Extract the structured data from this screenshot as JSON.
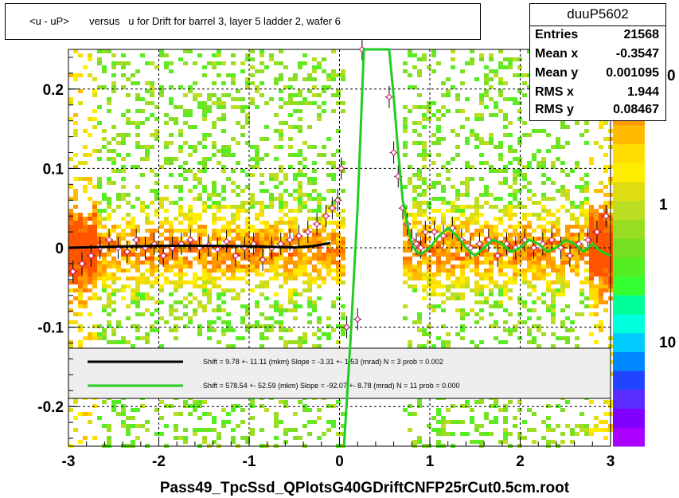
{
  "header": {
    "title": "<u - uP>       versus   u for Drift for barrel 3, layer 5 ladder 2, wafer 6"
  },
  "stats": {
    "name": "duuP5602",
    "rows": [
      {
        "label": "Entries",
        "value": "21568"
      },
      {
        "label": "Mean x",
        "value": "-0.3547"
      },
      {
        "label": "Mean y",
        "value": "0.001095"
      },
      {
        "label": "RMS x",
        "value": "1.944"
      },
      {
        "label": "RMS y",
        "value": "0.08467"
      }
    ]
  },
  "colors": {
    "fit_black": "#000000",
    "fit_green": "#22cc22",
    "marker": "#cc0066",
    "grid": "#000000",
    "legend_bg": "#eeeeee"
  },
  "chart_data": {
    "type": "heatmap",
    "xlabel": "Pass49_TpcSsd_QPlotsG40GDriftCNFP25rCut0.5cm.root",
    "ylabel": "",
    "xlim": [
      -3,
      3
    ],
    "ylim": [
      -0.25,
      0.25
    ],
    "x_ticks": [
      -3,
      -2,
      -1,
      0,
      1,
      2,
      3
    ],
    "y_ticks": [
      -0.2,
      -0.1,
      0,
      0.1,
      0.2
    ],
    "x_tick_labels": [
      "-3",
      "-2",
      "-1",
      "0",
      "1",
      "2",
      "3"
    ],
    "y_tick_labels": [
      "-0.2",
      "-0.1",
      "0",
      "0.1",
      "0.2"
    ],
    "z_ticks": [
      {
        "label": "1",
        "value": 1
      },
      {
        "label": "10",
        "value": 10
      },
      {
        "label": "0",
        "value": 0
      }
    ],
    "z_colors": [
      "#aa00ff",
      "#7f00ff",
      "#5b2cff",
      "#2244ff",
      "#0088ff",
      "#00ccff",
      "#00ffdd",
      "#00ff99",
      "#33ff33",
      "#55ee22",
      "#77e022",
      "#99dd22",
      "#bbdd22",
      "#dddd11",
      "#ffee00",
      "#ffdd00",
      "#ffbb00",
      "#ff9900",
      "#ff7700",
      "#ff5500",
      "#ff3300"
    ],
    "grid": true,
    "legend": {
      "placement": "bottom-center",
      "entries": [
        {
          "color": "#000000",
          "text": "Shift =    9.78 +- 11.11 (mkm) Slope =    -3.31 +- 1.53 (mrad)  N = 3 prob = 0.002"
        },
        {
          "color": "#22cc22",
          "text": "Shift =   578.54 +- 52.59 (mkm) Slope =   -92.07 +- 8.78 (mrad)  N = 11 prob = 0.000"
        }
      ]
    },
    "series": [
      {
        "type": "profile",
        "x": [
          -2.95,
          -2.85,
          -2.75,
          -2.65,
          -2.55,
          -2.45,
          -2.35,
          -2.25,
          -2.15,
          -2.05,
          -1.95,
          -1.85,
          -1.75,
          -1.65,
          -1.55,
          -1.45,
          -1.35,
          -1.25,
          -1.15,
          -1.05,
          -0.95,
          -0.85,
          -0.75,
          -0.65,
          -0.55,
          -0.45,
          -0.35,
          -0.25,
          -0.15,
          -0.08,
          -0.02,
          0.02,
          0.08,
          0.2,
          0.25,
          0.55,
          0.6,
          0.65,
          0.7,
          0.75,
          0.8,
          0.85,
          0.9,
          0.95,
          1.05,
          1.15,
          1.25,
          1.35,
          1.45,
          1.55,
          1.65,
          1.75,
          1.85,
          1.95,
          2.05,
          2.15,
          2.25,
          2.35,
          2.45,
          2.55,
          2.65,
          2.75,
          2.85,
          2.95
        ],
        "y": [
          -0.03,
          -0.02,
          -0.01,
          0.0,
          0.01,
          0.0,
          -0.005,
          0.01,
          0.0,
          0.005,
          -0.01,
          0.0,
          0.005,
          0.01,
          0.0,
          0.003,
          -0.002,
          0.008,
          -0.01,
          0.0,
          0.005,
          -0.015,
          0.0,
          0.005,
          0.01,
          0.015,
          0.02,
          0.03,
          0.04,
          0.05,
          0.06,
          0.1,
          -0.1,
          -0.09,
          0.25,
          0.19,
          0.12,
          0.09,
          0.05,
          0.03,
          0.01,
          0.005,
          0.0,
          0.02,
          0.02,
          0.015,
          0.025,
          0.01,
          0.0,
          0.005,
          0.01,
          -0.01,
          0.005,
          0.0,
          0.01,
          0.0,
          0.005,
          0.01,
          0.0,
          -0.01,
          0.005,
          0.01,
          0.02,
          0.04
        ]
      },
      {
        "name": "",
        "type": "fit-line",
        "color": "#000000",
        "x": [
          -3,
          -2.5,
          -2,
          -1.5,
          -1,
          -0.5,
          -0.3,
          -0.1
        ],
        "y": [
          0.0,
          0.0015,
          0.0025,
          0.0025,
          0.002,
          0.0005,
          0.002,
          0.006
        ]
      },
      {
        "name": "",
        "type": "fit-line",
        "color": "#22cc22",
        "x": [
          0.05,
          0.12,
          0.2,
          0.27,
          0.55,
          0.6,
          0.65,
          0.7,
          0.75,
          0.8,
          0.85,
          0.9,
          1.0,
          1.1,
          1.2,
          1.3,
          1.4,
          1.5,
          1.6,
          1.7,
          1.8,
          1.9,
          2.0,
          2.1,
          2.2,
          2.3,
          2.4,
          2.5,
          2.6,
          2.7,
          2.8,
          2.9,
          3.0
        ],
        "y": [
          -0.25,
          -0.12,
          0.05,
          0.25,
          0.25,
          0.19,
          0.12,
          0.06,
          0.03,
          0.005,
          -0.005,
          -0.008,
          0.0,
          0.015,
          0.025,
          0.015,
          0.0,
          -0.01,
          0.0,
          0.01,
          0.005,
          -0.005,
          0.0,
          0.01,
          0.005,
          -0.005,
          0.0,
          0.01,
          0.005,
          -0.005,
          0.005,
          -0.005,
          -0.01
        ]
      }
    ]
  }
}
